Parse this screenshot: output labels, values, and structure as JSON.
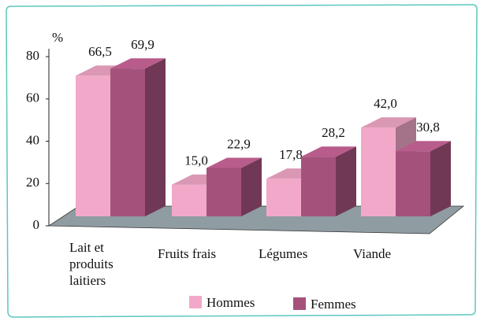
{
  "chart_data": {
    "type": "bar3d",
    "y_label": "%",
    "categories": [
      "Lait et produits laitiers",
      "Fruits frais",
      "Légumes",
      "Viande"
    ],
    "series": [
      {
        "name": "Hommes",
        "color": "#f2a9c9",
        "values": [
          66.5,
          15.0,
          17.8,
          42.0
        ],
        "value_labels": [
          "66,5",
          "15,0",
          "17,8",
          "42,0"
        ]
      },
      {
        "name": "Femmes",
        "color": "#a4527c",
        "values": [
          69.9,
          22.9,
          28.2,
          30.8
        ],
        "value_labels": [
          "69,9",
          "22,9",
          "28,2",
          "30,8"
        ]
      }
    ],
    "ylim": [
      0,
      80
    ],
    "yticks": [
      0,
      20,
      40,
      60,
      80
    ],
    "grid": false,
    "floor_color": "#8f9ca2"
  }
}
